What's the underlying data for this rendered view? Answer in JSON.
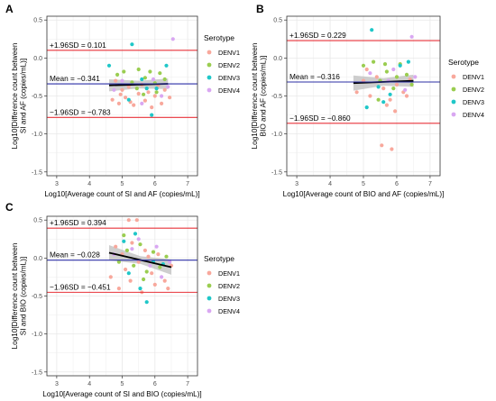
{
  "colors": {
    "DENV1": "#F8A89C",
    "DENV2": "#9ACD50",
    "DENV3": "#1FC7C8",
    "DENV4": "#D9A7F2",
    "sd_line": "#E8333A",
    "mean_line": "#2B2FA6",
    "trend": "#000000",
    "ci_band": "#BDBDBD",
    "grid": "#E8E8E8",
    "panel_border": "#333333"
  },
  "legend": {
    "title": "Serotype",
    "items": [
      "DENV1",
      "DENV2",
      "DENV3",
      "DENV4"
    ]
  },
  "chart_data": [
    {
      "type": "scatter",
      "panel_label": "A",
      "xlabel": "Log10[Average count of SI and AF (copies/mL)]",
      "ylabel": "Log10[Difference count between SI and AF (copies/mL)]",
      "ylabel_lines": [
        "Log10[Difference count between",
        "SI and AF (copies/mL)]"
      ],
      "xlim": [
        2.7,
        7.3
      ],
      "ylim": [
        -1.55,
        0.55
      ],
      "xticks": [
        3,
        4,
        5,
        6,
        7
      ],
      "yticks": [
        -1.5,
        -1.0,
        -0.5,
        0.0,
        0.5
      ],
      "ytick_labels": [
        "-1.5",
        "-1.0",
        "-0.5",
        "0.0",
        "0.5"
      ],
      "grid": true,
      "legend_position": "right",
      "reference_lines": [
        {
          "kind": "upper_sd",
          "label": "+1.96SD = 0.101",
          "y": 0.101
        },
        {
          "kind": "mean",
          "label": "Mean = −0.341",
          "y": -0.341
        },
        {
          "kind": "lower_sd",
          "label": "−1.96SD = −0.783",
          "y": -0.783
        }
      ],
      "trend": {
        "x": [
          4.6,
          6.4
        ],
        "y": [
          -0.36,
          -0.34
        ],
        "band": [
          0.08,
          0.05,
          0.07
        ]
      },
      "series": [
        {
          "name": "DENV1",
          "points": [
            [
              4.7,
              -0.55
            ],
            [
              4.8,
              -0.3
            ],
            [
              4.9,
              -0.6
            ],
            [
              5.0,
              -0.42
            ],
            [
              5.1,
              -0.52
            ],
            [
              5.2,
              -0.38
            ],
            [
              5.35,
              -0.62
            ],
            [
              5.5,
              -0.47
            ],
            [
              5.6,
              -0.35
            ],
            [
              5.7,
              -0.56
            ],
            [
              5.8,
              -0.45
            ],
            [
              5.9,
              -0.65
            ],
            [
              6.0,
              -0.5
            ],
            [
              6.1,
              -0.36
            ],
            [
              6.2,
              -0.6
            ],
            [
              6.3,
              -0.42
            ],
            [
              6.45,
              -0.52
            ],
            [
              5.25,
              -0.58
            ],
            [
              4.95,
              -0.48
            ]
          ]
        },
        {
          "name": "DENV2",
          "points": [
            [
              4.85,
              -0.22
            ],
            [
              5.05,
              -0.18
            ],
            [
              5.3,
              -0.32
            ],
            [
              5.5,
              -0.15
            ],
            [
              5.7,
              -0.26
            ],
            [
              5.85,
              -0.18
            ],
            [
              6.0,
              -0.33
            ],
            [
              6.15,
              -0.2
            ],
            [
              6.3,
              -0.28
            ],
            [
              5.45,
              -0.4
            ],
            [
              5.65,
              -0.48
            ],
            [
              6.05,
              -0.45
            ]
          ]
        },
        {
          "name": "DENV3",
          "points": [
            [
              4.6,
              -0.1
            ],
            [
              5.3,
              0.18
            ],
            [
              5.6,
              -0.28
            ],
            [
              5.9,
              -0.75
            ],
            [
              6.05,
              -0.4
            ],
            [
              5.2,
              -0.55
            ],
            [
              5.75,
              -0.4
            ],
            [
              6.35,
              -0.1
            ]
          ]
        },
        {
          "name": "DENV4",
          "points": [
            [
              6.55,
              0.25
            ],
            [
              5.0,
              -0.3
            ],
            [
              5.6,
              -0.6
            ],
            [
              6.2,
              -0.5
            ],
            [
              4.75,
              -0.42
            ],
            [
              5.95,
              -0.28
            ],
            [
              6.4,
              -0.38
            ]
          ]
        }
      ]
    },
    {
      "type": "scatter",
      "panel_label": "B",
      "xlabel": "Log10[Average count of BIO and AF (copies/mL)]",
      "ylabel": "Log10[Difference count between BIO and AF (copies/mL)]",
      "ylabel_lines": [
        "Log10[Difference count between",
        "BIO and AF (copies/mL)]"
      ],
      "xlim": [
        2.7,
        7.3
      ],
      "ylim": [
        -1.55,
        0.55
      ],
      "xticks": [
        3,
        4,
        5,
        6,
        7
      ],
      "yticks": [
        -1.5,
        -1.0,
        -0.5,
        0.0,
        0.5
      ],
      "ytick_labels": [
        "-1.5",
        "-1.0",
        "-0.5",
        "0.0",
        "0.5"
      ],
      "grid": true,
      "legend_position": "right",
      "reference_lines": [
        {
          "kind": "upper_sd",
          "label": "+1.96SD = 0.229",
          "y": 0.229
        },
        {
          "kind": "mean",
          "label": "Mean = −0.316",
          "y": -0.316
        },
        {
          "kind": "lower_sd",
          "label": "−1.96SD = −0.860",
          "y": -0.86
        }
      ],
      "trend": {
        "x": [
          4.7,
          6.5
        ],
        "y": [
          -0.33,
          -0.3
        ],
        "band": [
          0.1,
          0.05,
          0.08
        ]
      },
      "series": [
        {
          "name": "DENV1",
          "points": [
            [
              5.55,
              -1.15
            ],
            [
              5.85,
              -1.2
            ],
            [
              4.8,
              -0.45
            ],
            [
              5.0,
              -0.3
            ],
            [
              5.2,
              -0.5
            ],
            [
              5.4,
              -0.25
            ],
            [
              5.6,
              -0.4
            ],
            [
              5.8,
              -0.55
            ],
            [
              6.0,
              -0.35
            ],
            [
              6.2,
              -0.45
            ],
            [
              6.4,
              -0.28
            ],
            [
              5.95,
              -0.7
            ],
            [
              5.7,
              -0.62
            ],
            [
              5.1,
              -0.15
            ],
            [
              6.3,
              -0.5
            ]
          ]
        },
        {
          "name": "DENV2",
          "points": [
            [
              5.0,
              -0.1
            ],
            [
              5.3,
              -0.05
            ],
            [
              5.5,
              -0.3
            ],
            [
              5.7,
              -0.18
            ],
            [
              5.9,
              -0.4
            ],
            [
              6.1,
              -0.08
            ],
            [
              6.3,
              -0.22
            ],
            [
              5.45,
              -0.55
            ],
            [
              6.45,
              -0.35
            ],
            [
              5.65,
              -0.08
            ],
            [
              6.0,
              -0.25
            ]
          ]
        },
        {
          "name": "DENV3",
          "points": [
            [
              5.25,
              0.37
            ],
            [
              5.1,
              -0.65
            ],
            [
              5.45,
              -0.38
            ],
            [
              5.8,
              -0.48
            ],
            [
              6.1,
              -0.1
            ],
            [
              5.6,
              -0.58
            ],
            [
              6.35,
              -0.05
            ]
          ]
        },
        {
          "name": "DENV4",
          "points": [
            [
              6.45,
              0.28
            ],
            [
              5.2,
              -0.2
            ],
            [
              5.75,
              -0.3
            ],
            [
              6.25,
              -0.42
            ],
            [
              5.9,
              -0.15
            ],
            [
              6.55,
              -0.25
            ]
          ]
        }
      ]
    },
    {
      "type": "scatter",
      "panel_label": "C",
      "xlabel": "Log10[Average count of SI and BIO (copies/mL)]",
      "ylabel": "Log10[Difference count between SI and BIO (copies/mL)]",
      "ylabel_lines": [
        "Log10[Difference count between",
        "SI and BIO (copies/mL)]"
      ],
      "xlim": [
        2.7,
        7.3
      ],
      "ylim": [
        -1.55,
        0.55
      ],
      "xticks": [
        3,
        4,
        5,
        6,
        7
      ],
      "yticks": [
        -1.5,
        -1.0,
        -0.5,
        0.0,
        0.5
      ],
      "ytick_labels": [
        "-1.5",
        "-1.0",
        "-0.5",
        "0.0",
        "0.5"
      ],
      "grid": true,
      "legend_position": "right",
      "reference_lines": [
        {
          "kind": "upper_sd",
          "label": "+1.96SD = 0.394",
          "y": 0.394
        },
        {
          "kind": "mean",
          "label": "Mean = −0.028",
          "y": -0.028
        },
        {
          "kind": "lower_sd",
          "label": "−1.96SD = −0.451",
          "y": -0.451
        }
      ],
      "trend": {
        "x": [
          4.6,
          6.5
        ],
        "y": [
          0.07,
          -0.12
        ],
        "band": [
          0.1,
          0.05,
          0.1
        ]
      },
      "series": [
        {
          "name": "DENV1",
          "points": [
            [
              5.2,
              0.5
            ],
            [
              5.45,
              0.5
            ],
            [
              4.8,
              0.15
            ],
            [
              5.0,
              0.05
            ],
            [
              5.1,
              -0.15
            ],
            [
              5.3,
              0.2
            ],
            [
              5.5,
              -0.05
            ],
            [
              5.7,
              0.1
            ],
            [
              5.9,
              -0.2
            ],
            [
              6.1,
              0.05
            ],
            [
              6.3,
              -0.3
            ],
            [
              6.5,
              -0.1
            ],
            [
              4.9,
              -0.4
            ],
            [
              5.6,
              -0.45
            ],
            [
              6.0,
              -0.35
            ],
            [
              6.4,
              -0.4
            ],
            [
              4.65,
              -0.25
            ],
            [
              5.8,
              0.02
            ],
            [
              5.25,
              -0.3
            ]
          ]
        },
        {
          "name": "DENV2",
          "points": [
            [
              4.9,
              -0.05
            ],
            [
              5.15,
              0.1
            ],
            [
              5.35,
              -0.1
            ],
            [
              5.55,
              0.18
            ],
            [
              5.75,
              -0.18
            ],
            [
              5.95,
              0.08
            ],
            [
              6.15,
              -0.12
            ],
            [
              6.35,
              0.02
            ],
            [
              5.05,
              0.3
            ],
            [
              5.65,
              -0.28
            ]
          ]
        },
        {
          "name": "DENV3",
          "points": [
            [
              5.4,
              0.32
            ],
            [
              5.05,
              0.22
            ],
            [
              5.75,
              -0.58
            ],
            [
              5.55,
              -0.4
            ],
            [
              5.95,
              -0.05
            ],
            [
              5.2,
              -0.2
            ],
            [
              6.25,
              -0.08
            ]
          ]
        },
        {
          "name": "DENV4",
          "points": [
            [
              4.75,
              0.05
            ],
            [
              5.3,
              0.12
            ],
            [
              5.85,
              -0.1
            ],
            [
              6.05,
              0.15
            ],
            [
              6.45,
              -0.05
            ],
            [
              5.5,
              0.25
            ],
            [
              6.2,
              -0.25
            ]
          ]
        }
      ]
    }
  ]
}
